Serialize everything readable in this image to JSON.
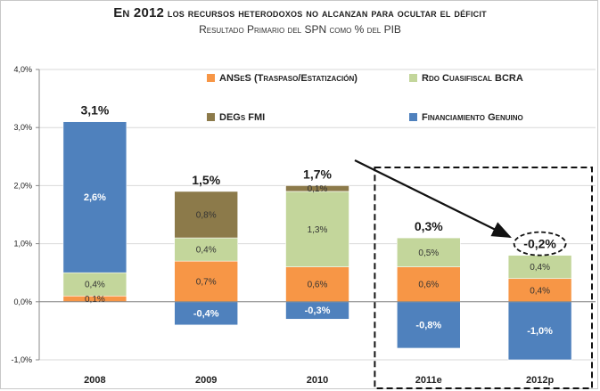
{
  "title_lead": "En 2012",
  "title_rest": "los recursos heterodoxos  no alcanzan para ocultar el déficit",
  "subtitle": "Resultado Primario del SPN como % del PIB",
  "chart_data": {
    "type": "bar",
    "stacked": true,
    "ylim": [
      -1.0,
      4.0
    ],
    "yticks": [
      "-1,0%",
      "0,0%",
      "1,0%",
      "2,0%",
      "3,0%",
      "4,0%"
    ],
    "yticks_values": [
      -1.0,
      0.0,
      1.0,
      2.0,
      3.0,
      4.0
    ],
    "grid": true,
    "legend_position": "top",
    "categories": [
      "2008",
      "2009",
      "2010",
      "2011e",
      "2012p"
    ],
    "series": [
      {
        "name": "ANSeS (Traspaso/Estatización)",
        "color": "#f79646",
        "values": [
          0.1,
          0.7,
          0.6,
          0.6,
          0.4
        ],
        "labels": [
          "0,1%",
          "0,7%",
          "0,6%",
          "0,6%",
          "0,4%"
        ]
      },
      {
        "name": "Rdo Cuasifiscal BCRA",
        "color": "#c3d69b",
        "values": [
          0.4,
          0.4,
          1.3,
          0.5,
          0.4
        ],
        "labels": [
          "0,4%",
          "0,4%",
          "1,3%",
          "0,5%",
          "0,4%"
        ]
      },
      {
        "name": "DEGs FMI",
        "color": "#8c7a4a",
        "values": [
          0,
          0.8,
          0.1,
          0,
          0
        ],
        "labels": [
          "",
          "0,8%",
          "0,1%",
          "",
          ""
        ]
      },
      {
        "name": "Financiamiento Genuino",
        "color": "#4f81bd",
        "values": [
          2.6,
          -0.4,
          -0.3,
          -0.8,
          -1.0
        ],
        "labels": [
          "2,6%",
          "-0,4%",
          "-0,3%",
          "-0,8%",
          "-1,0%"
        ]
      }
    ],
    "totals": [
      3.1,
      1.5,
      1.7,
      0.3,
      -0.2
    ],
    "total_labels": [
      "3,1%",
      "1,5%",
      "1,7%",
      "0,3%",
      "-0,2%"
    ],
    "highlight_categories": [
      "2011e",
      "2012p"
    ],
    "highlight_total": "2012p"
  }
}
